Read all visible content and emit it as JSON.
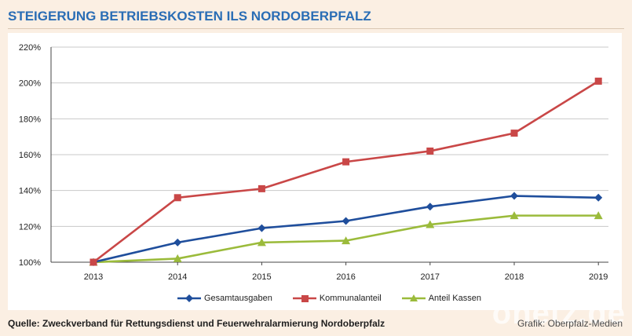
{
  "header": {
    "title": "STEIGERUNG BETRIEBSKOSTEN ILS NORDOBERPFALZ"
  },
  "footer": {
    "source": "Quelle: Zweckverband für Rettungsdienst und Feuerwehralarmierung Nordoberpfalz",
    "credit": "Grafik: Oberpfalz-Medien",
    "watermark": "onetz.de"
  },
  "chart_data": {
    "type": "line",
    "title": "STEIGERUNG BETRIEBSKOSTEN ILS NORDOBERPFALZ",
    "xlabel": "",
    "ylabel": "",
    "categories": [
      "2013",
      "2014",
      "2015",
      "2016",
      "2017",
      "2018",
      "2019"
    ],
    "ylim": [
      100,
      220
    ],
    "yticks": [
      100,
      120,
      140,
      160,
      180,
      200,
      220
    ],
    "ytick_labels": [
      "100%",
      "120%",
      "140%",
      "160%",
      "180%",
      "200%",
      "220%"
    ],
    "grid": true,
    "legend_position": "bottom",
    "series": [
      {
        "name": "Gesamtausgaben",
        "color": "#1f4e9c",
        "marker": "diamond",
        "values": [
          100,
          111,
          119,
          123,
          131,
          137,
          136
        ]
      },
      {
        "name": "Kommunalanteil",
        "color": "#c94747",
        "marker": "square",
        "values": [
          100,
          136,
          141,
          156,
          162,
          172,
          201
        ]
      },
      {
        "name": "Anteil Kassen",
        "color": "#9bbb3b",
        "marker": "triangle",
        "values": [
          100,
          102,
          111,
          112,
          121,
          126,
          126
        ]
      }
    ]
  }
}
